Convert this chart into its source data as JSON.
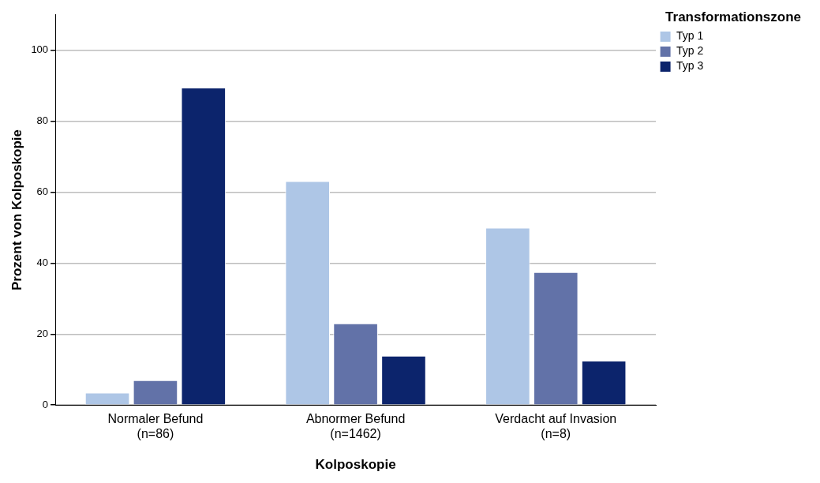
{
  "chart_data": {
    "type": "bar",
    "xlabel": "Kolposkopie",
    "ylabel": "Prozent von Kolposkopie",
    "legend_title": "Transformationszone",
    "categories": [
      "Normaler Befund\n(n=86)",
      "Abnormer Befund\n(n=1462)",
      "Verdacht auf Invasion\n(n=8)"
    ],
    "series": [
      {
        "name": "Typ 1",
        "color": "#aec6e6",
        "values": [
          3.5,
          63.1,
          50
        ]
      },
      {
        "name": "Typ 2",
        "color": "#6272a8",
        "values": [
          7,
          23,
          37.5
        ]
      },
      {
        "name": "Typ 3",
        "color": "#0c246c",
        "values": [
          89.5,
          13.9,
          12.5
        ]
      }
    ],
    "ylim": [
      0,
      110
    ],
    "yticks": [
      0,
      20,
      40,
      60,
      80,
      100
    ],
    "grid": "y",
    "legend": "top right"
  }
}
